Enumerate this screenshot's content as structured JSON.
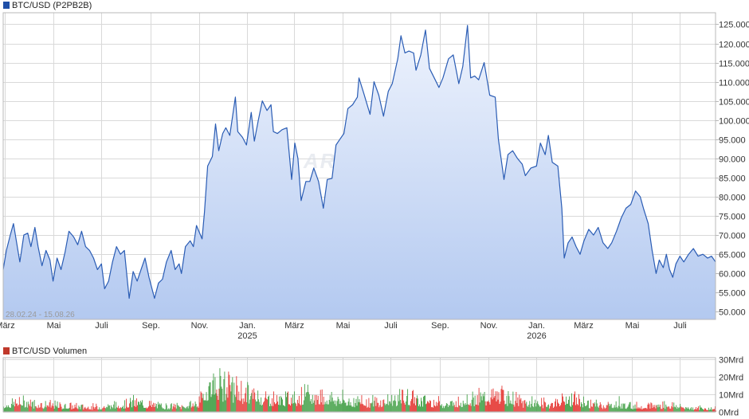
{
  "chart_data": [
    {
      "type": "area",
      "legend": "BTC/USD (P2PB2B)",
      "date_range": "28.02.24 - 15.08.26",
      "watermark": "ARIVA.DE",
      "line_color": "#2a5cb4",
      "fill_top_color": "#eef3fd",
      "fill_bottom_color": "#b3c9f0",
      "legend_color": "#1f4fa8",
      "y_ticks": [
        "125.000",
        "120.000",
        "115.000",
        "110.000",
        "105.000",
        "100.000",
        "95.000",
        "90.000",
        "85.000",
        "80.000",
        "75.000",
        "70.000",
        "65.000",
        "60.000",
        "55.000",
        "50.000"
      ],
      "y_tick_values": [
        125000,
        120000,
        115000,
        110000,
        105000,
        100000,
        95000,
        90000,
        85000,
        80000,
        75000,
        70000,
        65000,
        60000,
        55000,
        50000
      ],
      "ylim": [
        48000,
        128000
      ],
      "x_ticks": [
        {
          "label": "März",
          "date": "2024-03-01"
        },
        {
          "label": "Mai",
          "date": "2024-05-01"
        },
        {
          "label": "Juli",
          "date": "2024-07-01"
        },
        {
          "label": "Sep.",
          "date": "2024-09-01"
        },
        {
          "label": "Nov.",
          "date": "2024-11-01"
        },
        {
          "label": "Jan.",
          "year": "2025",
          "date": "2025-01-01"
        },
        {
          "label": "März",
          "date": "2025-03-01"
        },
        {
          "label": "Mai",
          "date": "2025-05-01"
        },
        {
          "label": "Juli",
          "date": "2025-07-01"
        },
        {
          "label": "Sep.",
          "date": "2025-09-01"
        },
        {
          "label": "Nov.",
          "date": "2025-11-01"
        },
        {
          "label": "Jan.",
          "year": "2026",
          "date": "2026-01-01"
        },
        {
          "label": "März",
          "date": "2026-03-01"
        },
        {
          "label": "Mai",
          "date": "2026-05-01"
        },
        {
          "label": "Juli",
          "date": "2026-07-01"
        }
      ],
      "x_start": "2024-02-28",
      "x_end": "2026-08-15",
      "points": [
        [
          "2024-02-28",
          61000
        ],
        [
          "2024-03-03",
          66000
        ],
        [
          "2024-03-08",
          70000
        ],
        [
          "2024-03-12",
          73000
        ],
        [
          "2024-03-16",
          68000
        ],
        [
          "2024-03-20",
          63000
        ],
        [
          "2024-03-25",
          70000
        ],
        [
          "2024-03-30",
          70500
        ],
        [
          "2024-04-03",
          67000
        ],
        [
          "2024-04-08",
          72000
        ],
        [
          "2024-04-12",
          67000
        ],
        [
          "2024-04-17",
          62000
        ],
        [
          "2024-04-22",
          66000
        ],
        [
          "2024-04-27",
          63500
        ],
        [
          "2024-05-01",
          58000
        ],
        [
          "2024-05-06",
          64000
        ],
        [
          "2024-05-11",
          61000
        ],
        [
          "2024-05-16",
          65500
        ],
        [
          "2024-05-21",
          71000
        ],
        [
          "2024-05-27",
          69500
        ],
        [
          "2024-06-01",
          67500
        ],
        [
          "2024-06-06",
          71000
        ],
        [
          "2024-06-11",
          67000
        ],
        [
          "2024-06-16",
          66000
        ],
        [
          "2024-06-21",
          64000
        ],
        [
          "2024-06-26",
          61000
        ],
        [
          "2024-07-01",
          62500
        ],
        [
          "2024-07-05",
          56000
        ],
        [
          "2024-07-10",
          58000
        ],
        [
          "2024-07-15",
          63000
        ],
        [
          "2024-07-20",
          67000
        ],
        [
          "2024-07-25",
          65000
        ],
        [
          "2024-07-30",
          66000
        ],
        [
          "2024-08-05",
          53500
        ],
        [
          "2024-08-10",
          60500
        ],
        [
          "2024-08-15",
          58000
        ],
        [
          "2024-08-20",
          61000
        ],
        [
          "2024-08-25",
          64000
        ],
        [
          "2024-08-30",
          59000
        ],
        [
          "2024-09-06",
          53500
        ],
        [
          "2024-09-11",
          57500
        ],
        [
          "2024-09-16",
          58500
        ],
        [
          "2024-09-21",
          63000
        ],
        [
          "2024-09-27",
          66000
        ],
        [
          "2024-10-02",
          61000
        ],
        [
          "2024-10-07",
          62500
        ],
        [
          "2024-10-10",
          60000
        ],
        [
          "2024-10-15",
          67000
        ],
        [
          "2024-10-21",
          68500
        ],
        [
          "2024-10-25",
          67000
        ],
        [
          "2024-10-29",
          72500
        ],
        [
          "2024-11-05",
          69000
        ],
        [
          "2024-11-08",
          76000
        ],
        [
          "2024-11-12",
          88000
        ],
        [
          "2024-11-18",
          90500
        ],
        [
          "2024-11-22",
          99000
        ],
        [
          "2024-11-26",
          92000
        ],
        [
          "2024-12-01",
          96500
        ],
        [
          "2024-12-05",
          98000
        ],
        [
          "2024-12-10",
          96000
        ],
        [
          "2024-12-17",
          106000
        ],
        [
          "2024-12-20",
          97000
        ],
        [
          "2024-12-26",
          95500
        ],
        [
          "2024-12-31",
          93500
        ],
        [
          "2025-01-06",
          102000
        ],
        [
          "2025-01-10",
          94500
        ],
        [
          "2025-01-15",
          100000
        ],
        [
          "2025-01-20",
          105000
        ],
        [
          "2025-01-26",
          102500
        ],
        [
          "2025-01-31",
          104000
        ],
        [
          "2025-02-03",
          97000
        ],
        [
          "2025-02-08",
          96500
        ],
        [
          "2025-02-14",
          97500
        ],
        [
          "2025-02-20",
          98000
        ],
        [
          "2025-02-26",
          84500
        ],
        [
          "2025-03-02",
          94000
        ],
        [
          "2025-03-06",
          90000
        ],
        [
          "2025-03-10",
          79000
        ],
        [
          "2025-03-16",
          84000
        ],
        [
          "2025-03-21",
          84000
        ],
        [
          "2025-03-26",
          87500
        ],
        [
          "2025-04-01",
          84000
        ],
        [
          "2025-04-07",
          77000
        ],
        [
          "2025-04-12",
          84500
        ],
        [
          "2025-04-18",
          84800
        ],
        [
          "2025-04-23",
          93500
        ],
        [
          "2025-04-28",
          95000
        ],
        [
          "2025-05-03",
          96500
        ],
        [
          "2025-05-08",
          103000
        ],
        [
          "2025-05-14",
          104000
        ],
        [
          "2025-05-20",
          106000
        ],
        [
          "2025-05-22",
          111000
        ],
        [
          "2025-05-28",
          107000
        ],
        [
          "2025-06-05",
          101500
        ],
        [
          "2025-06-10",
          110000
        ],
        [
          "2025-06-16",
          106500
        ],
        [
          "2025-06-22",
          101000
        ],
        [
          "2025-06-28",
          107500
        ],
        [
          "2025-07-03",
          109500
        ],
        [
          "2025-07-10",
          116000
        ],
        [
          "2025-07-14",
          122000
        ],
        [
          "2025-07-19",
          117500
        ],
        [
          "2025-07-24",
          118000
        ],
        [
          "2025-07-30",
          117500
        ],
        [
          "2025-08-02",
          113000
        ],
        [
          "2025-08-08",
          117000
        ],
        [
          "2025-08-14",
          123500
        ],
        [
          "2025-08-19",
          113500
        ],
        [
          "2025-08-25",
          111000
        ],
        [
          "2025-08-31",
          108500
        ],
        [
          "2025-09-05",
          111000
        ],
        [
          "2025-09-12",
          116000
        ],
        [
          "2025-09-18",
          117000
        ],
        [
          "2025-09-25",
          109500
        ],
        [
          "2025-09-30",
          114000
        ],
        [
          "2025-10-06",
          124700
        ],
        [
          "2025-10-10",
          111000
        ],
        [
          "2025-10-15",
          111500
        ],
        [
          "2025-10-20",
          110500
        ],
        [
          "2025-10-27",
          115000
        ],
        [
          "2025-11-03",
          106500
        ],
        [
          "2025-11-10",
          106000
        ],
        [
          "2025-11-14",
          95000
        ],
        [
          "2025-11-21",
          84500
        ],
        [
          "2025-11-26",
          91000
        ],
        [
          "2025-12-02",
          92000
        ],
        [
          "2025-12-08",
          90000
        ],
        [
          "2025-12-14",
          88500
        ],
        [
          "2025-12-18",
          85500
        ],
        [
          "2025-12-25",
          87500
        ],
        [
          "2026-01-01",
          88000
        ],
        [
          "2026-01-06",
          94000
        ],
        [
          "2026-01-12",
          91000
        ],
        [
          "2026-01-16",
          96000
        ],
        [
          "2026-01-21",
          89000
        ],
        [
          "2026-01-28",
          88000
        ],
        [
          "2026-02-02",
          77000
        ],
        [
          "2026-02-05",
          64000
        ],
        [
          "2026-02-10",
          68000
        ],
        [
          "2026-02-15",
          69500
        ],
        [
          "2026-02-20",
          67000
        ],
        [
          "2026-02-25",
          65000
        ],
        [
          "2026-03-02",
          68500
        ],
        [
          "2026-03-08",
          71500
        ],
        [
          "2026-03-14",
          70000
        ],
        [
          "2026-03-20",
          72000
        ],
        [
          "2026-03-26",
          68000
        ],
        [
          "2026-04-01",
          66500
        ],
        [
          "2026-04-06",
          68000
        ],
        [
          "2026-04-12",
          71000
        ],
        [
          "2026-04-18",
          74500
        ],
        [
          "2026-04-24",
          77000
        ],
        [
          "2026-04-30",
          78000
        ],
        [
          "2026-05-06",
          81500
        ],
        [
          "2026-05-12",
          80000
        ],
        [
          "2026-05-16",
          77000
        ],
        [
          "2026-05-22",
          73000
        ],
        [
          "2026-05-27",
          66000
        ],
        [
          "2026-06-01",
          60000
        ],
        [
          "2026-06-05",
          63500
        ],
        [
          "2026-06-10",
          61500
        ],
        [
          "2026-06-14",
          65000
        ],
        [
          "2026-06-18",
          61000
        ],
        [
          "2026-06-22",
          59000
        ],
        [
          "2026-06-26",
          62500
        ],
        [
          "2026-07-01",
          64500
        ],
        [
          "2026-07-06",
          63000
        ],
        [
          "2026-07-12",
          65000
        ],
        [
          "2026-07-18",
          66500
        ],
        [
          "2026-07-24",
          64500
        ],
        [
          "2026-07-30",
          65000
        ],
        [
          "2026-08-05",
          64000
        ],
        [
          "2026-08-10",
          64500
        ],
        [
          "2026-08-15",
          63000
        ]
      ]
    },
    {
      "type": "bar",
      "legend": "BTC/USD Volumen",
      "legend_color": "#c0392b",
      "up_color": "#43a047",
      "down_color": "#e53935",
      "y_ticks": [
        "30Mrd",
        "20Mrd",
        "10Mrd",
        "0Mrd"
      ],
      "y_tick_values": [
        30,
        20,
        10,
        0
      ],
      "ylim": [
        0,
        31
      ],
      "unit": "Mrd",
      "volume_profile": [
        [
          "2024-02-28",
          4
        ],
        [
          "2024-03-20",
          6
        ],
        [
          "2024-04-20",
          4.5
        ],
        [
          "2024-05-20",
          3.5
        ],
        [
          "2024-06-20",
          3
        ],
        [
          "2024-07-20",
          4
        ],
        [
          "2024-08-10",
          6
        ],
        [
          "2024-09-15",
          3.5
        ],
        [
          "2024-10-15",
          3.5
        ],
        [
          "2024-11-01",
          6
        ],
        [
          "2024-11-15",
          17
        ],
        [
          "2024-12-05",
          16
        ],
        [
          "2024-12-25",
          12
        ],
        [
          "2025-01-20",
          9
        ],
        [
          "2025-02-15",
          7
        ],
        [
          "2025-03-10",
          10
        ],
        [
          "2025-04-10",
          9
        ],
        [
          "2025-05-10",
          7
        ],
        [
          "2025-06-15",
          6
        ],
        [
          "2025-07-15",
          9
        ],
        [
          "2025-08-15",
          7
        ],
        [
          "2025-09-15",
          5
        ],
        [
          "2025-10-10",
          8
        ],
        [
          "2025-11-15",
          10
        ],
        [
          "2025-12-15",
          6
        ],
        [
          "2026-01-20",
          5
        ],
        [
          "2026-02-10",
          8
        ],
        [
          "2026-03-15",
          4.5
        ],
        [
          "2026-04-15",
          4
        ],
        [
          "2026-05-15",
          3.5
        ],
        [
          "2026-06-15",
          4.5
        ],
        [
          "2026-07-15",
          2.5
        ],
        [
          "2026-08-15",
          2
        ]
      ]
    }
  ]
}
